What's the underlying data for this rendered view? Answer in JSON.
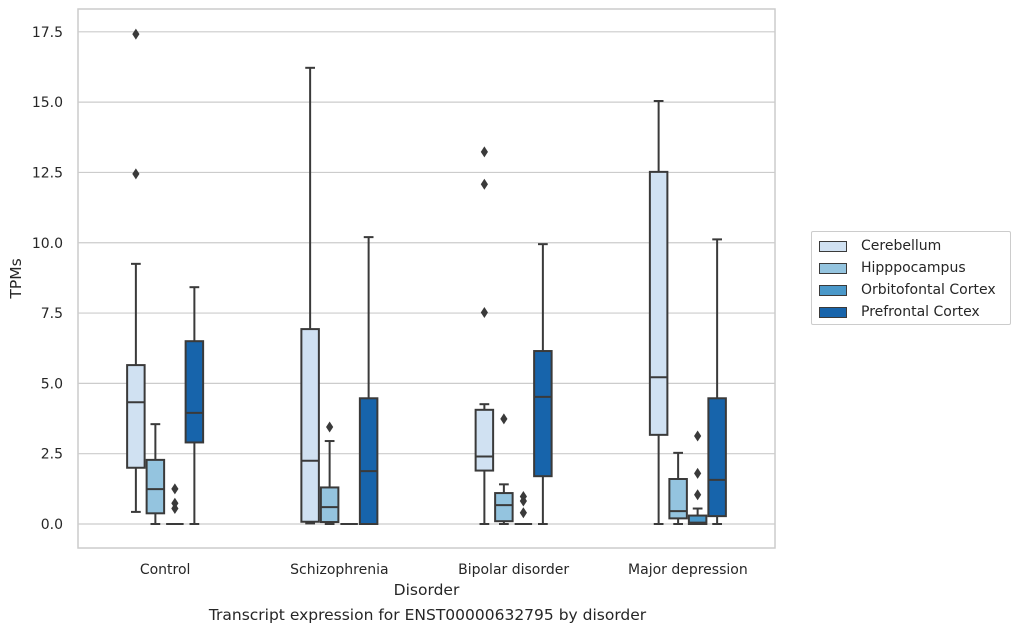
{
  "caption": "Transcript expression for ENST00000632795 by disorder",
  "colors": {
    "Cerebellum": "#d0e1f2",
    "Hipppocampus": "#94c4df",
    "Orbitofontal Cortex": "#4a98c9",
    "Prefrontal Cortex": "#1764ab",
    "grid": "#cccccc",
    "frame": "#cccccc",
    "box_edge": "#3a3a3a"
  },
  "chart_data": {
    "type": "box",
    "xlabel": "Disorder",
    "ylabel": "TPMs",
    "categories": [
      "Control",
      "Schizophrenia",
      "Bipolar disorder",
      "Major depression"
    ],
    "ylim": [
      -0.87,
      18.3
    ],
    "yticks": [
      "0.0",
      "2.5",
      "5.0",
      "7.5",
      "10.0",
      "12.5",
      "15.0",
      "17.5"
    ],
    "grid": "horizontal",
    "legend_position": "right",
    "series": [
      {
        "name": "Cerebellum",
        "boxes": [
          {
            "whislo": 0.43,
            "q1": 2.0,
            "med": 4.33,
            "q3": 5.65,
            "whishi": 9.25,
            "fliers": [
              12.45,
              17.42
            ]
          },
          {
            "whislo": 0.02,
            "q1": 0.08,
            "med": 2.25,
            "q3": 6.93,
            "whishi": 16.22,
            "fliers": []
          },
          {
            "whislo": 0.0,
            "q1": 1.9,
            "med": 2.4,
            "q3": 4.06,
            "whishi": 4.26,
            "fliers": [
              7.52,
              12.08,
              13.23
            ]
          },
          {
            "whislo": 0.0,
            "q1": 3.17,
            "med": 5.22,
            "q3": 12.52,
            "whishi": 15.04,
            "fliers": []
          }
        ]
      },
      {
        "name": "Hipppocampus",
        "boxes": [
          {
            "whislo": 0.0,
            "q1": 0.38,
            "med": 1.24,
            "q3": 2.28,
            "whishi": 3.55,
            "fliers": []
          },
          {
            "whislo": 0.0,
            "q1": 0.07,
            "med": 0.6,
            "q3": 1.3,
            "whishi": 2.95,
            "fliers": [
              3.45
            ]
          },
          {
            "whislo": 0.0,
            "q1": 0.1,
            "med": 0.67,
            "q3": 1.1,
            "whishi": 1.41,
            "fliers": [
              3.74
            ]
          },
          {
            "whislo": 0.0,
            "q1": 0.2,
            "med": 0.46,
            "q3": 1.6,
            "whishi": 2.53,
            "fliers": []
          }
        ]
      },
      {
        "name": "Orbitofontal Cortex",
        "boxes": [
          {
            "whislo": 0.0,
            "q1": 0.0,
            "med": 0.0,
            "q3": 0.0,
            "whishi": 0.0,
            "fliers": [
              0.55,
              0.74,
              1.25
            ]
          },
          {
            "whislo": 0.0,
            "q1": 0.0,
            "med": 0.0,
            "q3": 0.0,
            "whishi": 0.0,
            "fliers": []
          },
          {
            "whislo": 0.0,
            "q1": 0.0,
            "med": 0.0,
            "q3": 0.0,
            "whishi": 0.0,
            "fliers": [
              0.4,
              0.82,
              0.98
            ]
          },
          {
            "whislo": 0.0,
            "q1": 0.0,
            "med": 0.05,
            "q3": 0.3,
            "whishi": 0.55,
            "fliers": [
              1.04,
              1.8,
              3.13
            ]
          }
        ]
      },
      {
        "name": "Prefrontal Cortex",
        "boxes": [
          {
            "whislo": 0.0,
            "q1": 2.9,
            "med": 3.95,
            "q3": 6.5,
            "whishi": 8.42,
            "fliers": []
          },
          {
            "whislo": 0.0,
            "q1": 0.0,
            "med": 1.88,
            "q3": 4.47,
            "whishi": 10.2,
            "fliers": []
          },
          {
            "whislo": 0.0,
            "q1": 1.7,
            "med": 4.52,
            "q3": 6.15,
            "whishi": 9.95,
            "fliers": []
          },
          {
            "whislo": 0.0,
            "q1": 0.28,
            "med": 1.57,
            "q3": 4.47,
            "whishi": 10.12,
            "fliers": []
          }
        ]
      }
    ]
  }
}
